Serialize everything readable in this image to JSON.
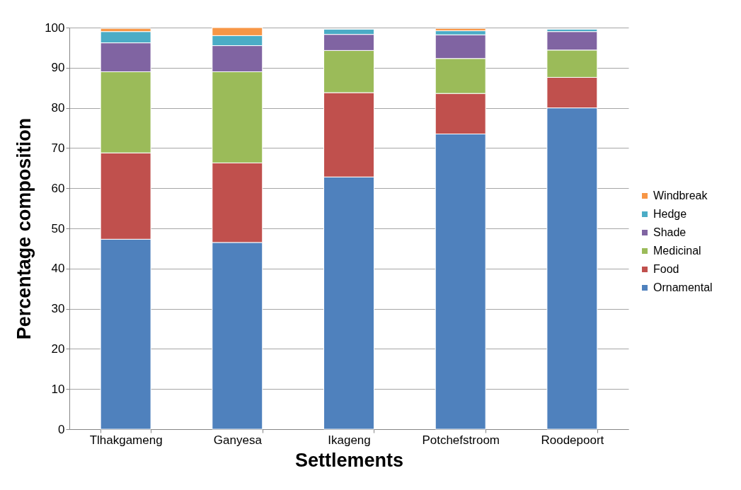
{
  "chart_data": {
    "type": "bar",
    "stacked": true,
    "xlabel": "Settlements",
    "ylabel": "Percentage composition",
    "categories": [
      "Tlhakgameng",
      "Ganyesa",
      "Ikageng",
      "Potchefstroom",
      "Roodepoort"
    ],
    "series": [
      {
        "name": "Ornamental",
        "color": "#4f81bd",
        "values": [
          47.3,
          46.5,
          62.8,
          73.5,
          80.0
        ]
      },
      {
        "name": "Food",
        "color": "#c0504d",
        "values": [
          21.5,
          19.8,
          21.0,
          10.1,
          7.6
        ]
      },
      {
        "name": "Medicinal",
        "color": "#9bbb59",
        "values": [
          20.2,
          22.7,
          10.5,
          8.7,
          6.8
        ]
      },
      {
        "name": "Shade",
        "color": "#8064a2",
        "values": [
          7.2,
          6.5,
          4.0,
          5.9,
          4.6
        ]
      },
      {
        "name": "Hedge",
        "color": "#4bacc6",
        "values": [
          2.8,
          2.5,
          1.3,
          1.0,
          0.6
        ]
      },
      {
        "name": "Windbreak",
        "color": "#f79646",
        "values": [
          0.8,
          2.0,
          null,
          0.6,
          null
        ]
      }
    ],
    "ylim": [
      0,
      100
    ],
    "yticks": [
      0,
      10,
      20,
      30,
      40,
      50,
      60,
      70,
      80,
      90,
      100
    ],
    "grid": "y",
    "legend": "right"
  }
}
